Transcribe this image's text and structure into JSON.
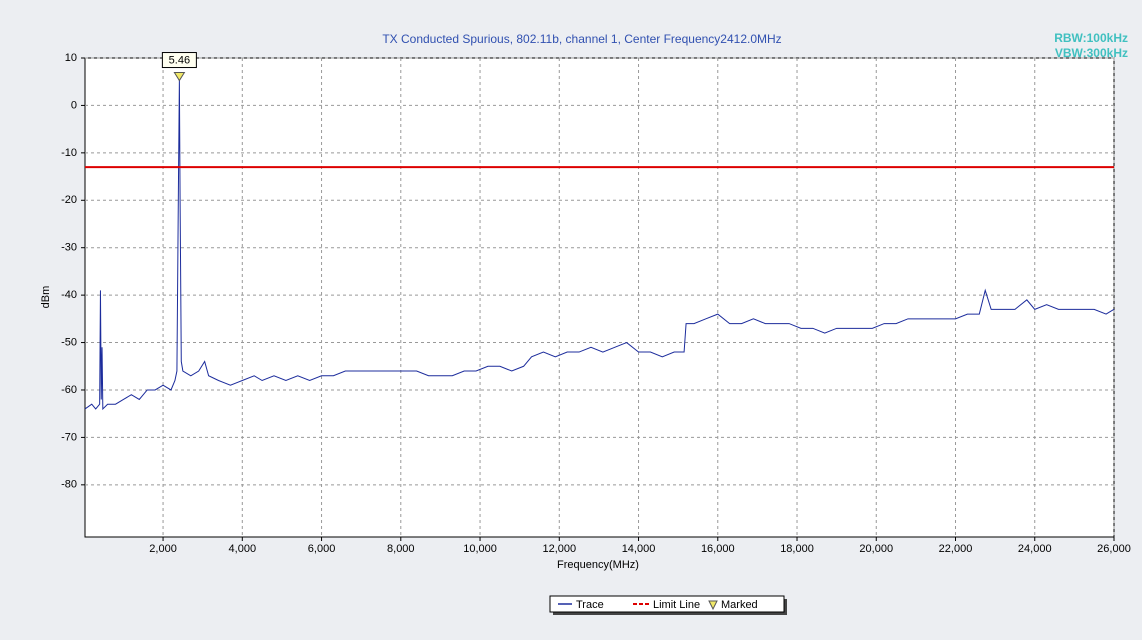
{
  "chart_data": {
    "type": "line",
    "title": "TX Conducted Spurious, 802.11b, channel 1, Center Frequency2412.0MHz",
    "rbw": "RBW:100kHz",
    "vbw": "VBW:300kHz",
    "x_label": "Frequency(MHz)",
    "y_label": "dBm",
    "xlim": [
      30,
      26000
    ],
    "ylim": [
      -91,
      10
    ],
    "xticks": [
      {
        "value": 2000,
        "label": "2,000"
      },
      {
        "value": 4000,
        "label": "4,000"
      },
      {
        "value": 6000,
        "label": "6,000"
      },
      {
        "value": 8000,
        "label": "8,000"
      },
      {
        "value": 10000,
        "label": "10,000"
      },
      {
        "value": 12000,
        "label": "12,000"
      },
      {
        "value": 14000,
        "label": "14,000"
      },
      {
        "value": 16000,
        "label": "16,000"
      },
      {
        "value": 18000,
        "label": "18,000"
      },
      {
        "value": 20000,
        "label": "20,000"
      },
      {
        "value": 22000,
        "label": "22,000"
      },
      {
        "value": 24000,
        "label": "24,000"
      },
      {
        "value": 26000,
        "label": "26,000"
      }
    ],
    "yticks": [
      10,
      0,
      -10,
      -20,
      -30,
      -40,
      -50,
      -60,
      -70,
      -80
    ],
    "grid": true,
    "legend": "bottom",
    "series": [
      {
        "name": "Trace",
        "color": "#1c2c9c",
        "x": [
          30,
          200,
          300,
          400,
          420,
          440,
          460,
          480,
          600,
          800,
          1000,
          1200,
          1400,
          1600,
          1800,
          2000,
          2200,
          2300,
          2350,
          2390,
          2412,
          2430,
          2460,
          2500,
          2700,
          2900,
          3050,
          3150,
          3400,
          3700,
          4000,
          4300,
          4500,
          4800,
          5100,
          5400,
          5700,
          6000,
          6300,
          6600,
          6900,
          7200,
          7500,
          7800,
          8100,
          8400,
          8700,
          9000,
          9300,
          9600,
          9900,
          10200,
          10500,
          10800,
          11100,
          11300,
          11600,
          11900,
          12200,
          12500,
          12800,
          13100,
          13400,
          13700,
          14000,
          14300,
          14600,
          14900,
          15150,
          15200,
          15400,
          15700,
          16000,
          16300,
          16600,
          16900,
          17200,
          17500,
          17800,
          18100,
          18400,
          18700,
          19000,
          19300,
          19600,
          19900,
          20200,
          20500,
          20800,
          21100,
          21400,
          21700,
          22000,
          22300,
          22600,
          22750,
          22900,
          23200,
          23500,
          23800,
          24000,
          24300,
          24600,
          24900,
          25200,
          25500,
          25800,
          26000
        ],
        "values": [
          -64,
          -63,
          -64,
          -63,
          -39,
          -62,
          -51,
          -64,
          -63,
          -63,
          -62,
          -61,
          -62,
          -60,
          -60,
          -59,
          -60,
          -58,
          -56,
          -15,
          5.46,
          -20,
          -54,
          -56,
          -57,
          -56,
          -54,
          -57,
          -58,
          -59,
          -58,
          -57,
          -58,
          -57,
          -58,
          -57,
          -58,
          -57,
          -57,
          -56,
          -56,
          -56,
          -56,
          -56,
          -56,
          -56,
          -57,
          -57,
          -57,
          -56,
          -56,
          -55,
          -55,
          -56,
          -55,
          -53,
          -52,
          -53,
          -52,
          -52,
          -51,
          -52,
          -51,
          -50,
          -52,
          -52,
          -53,
          -52,
          -52,
          -46,
          -46,
          -45,
          -44,
          -46,
          -46,
          -45,
          -46,
          -46,
          -46,
          -47,
          -47,
          -48,
          -47,
          -47,
          -47,
          -47,
          -46,
          -46,
          -45,
          -45,
          -45,
          -45,
          -45,
          -44,
          -44,
          -39,
          -43,
          -43,
          -43,
          -41,
          -43,
          -42,
          -43,
          -43,
          -43,
          -43,
          -44,
          -43
        ]
      },
      {
        "name": "Limit Line",
        "color": "#dd0000",
        "x": [
          30,
          26000
        ],
        "values": [
          -13,
          -13
        ]
      }
    ],
    "marker": {
      "name": "Marked",
      "color": "#f0e868",
      "x": 2412,
      "value": 5.46
    }
  }
}
